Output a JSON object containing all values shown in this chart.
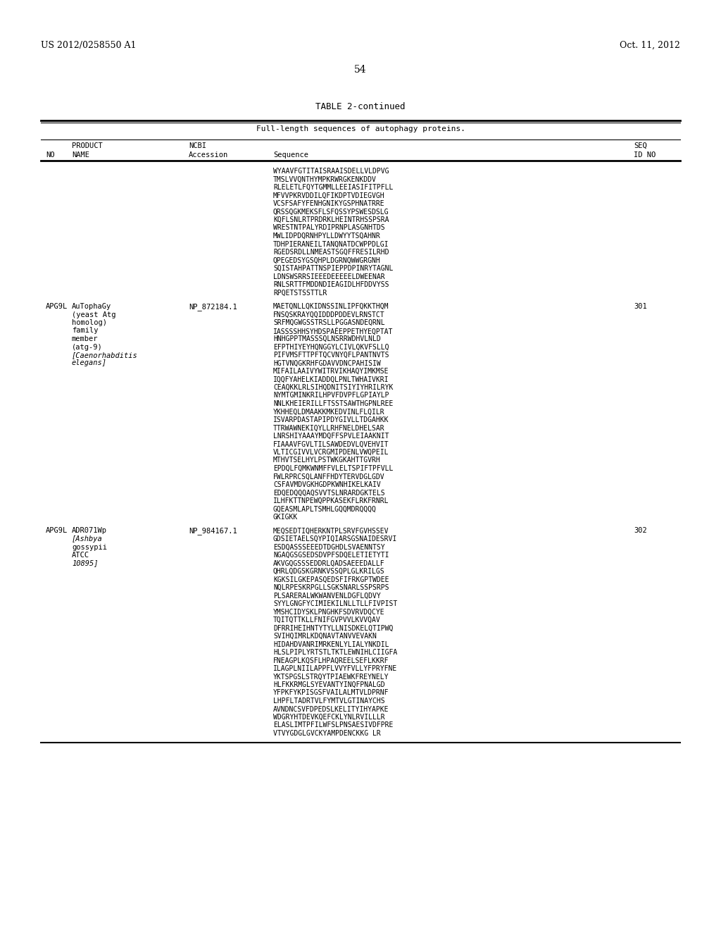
{
  "header_left": "US 2012/0258550 A1",
  "header_right": "Oct. 11, 2012",
  "page_number": "54",
  "table_title": "TABLE 2-continued",
  "table_subtitle": "Full-length sequences of autophagy proteins.",
  "background_color": "#ffffff",
  "text_color": "#000000",
  "row0_sequences": [
    "WYAAVFGTITAISRAAISDELLVLDPVG",
    "TMSLVVQNTHYMPKRWRGKENKDDV",
    "RLELETLFQYTGMMLLEEIASIFITPFLL",
    "MFVVPKRVDDILQFIKDPTVDIEGVGH",
    "VCSFSAFYFENHGNIKYGSPHNATRRE",
    "QRSSQGKMEKSFLSFQSSYPSWESDSLG",
    "KQFLSNLRTPRDRKLHEINTRHSSPSRA",
    "WRESTNTPALYRDIPRNPLASGNHTDS",
    "MWLIDPDQRNHPYLLDWYYTSQAHNR",
    "TDHPIERANEILTANQNATDCWPPDLGI",
    "RGEDSRDLLNMEASTSGQFFRESILRHD",
    "QPEGEDSYGSQHPLDGRNQWWGRGNH",
    "SQISTAHPATTNSPIEPPDPINRYTAGNL",
    "LDNSWSRRSIEEEDEEEEELDWEENAR",
    "RNLSRTTFMDDNDIEAGIDLHFDDVYSS",
    "RPQETSTSSTTLR"
  ],
  "row1_product_no": "APG9L",
  "row1_product_name": "AuTophaGy",
  "row1_product_rest": [
    "(yeast Atg",
    "homolog)",
    "family",
    "member",
    "(atg-9)",
    "[Caenorhabditis",
    "elegans]"
  ],
  "row1_accession": "NP_872184.1",
  "row1_seqid": "301",
  "row1_sequences": [
    "MAETQNLLQKIDNSSINLIPFQKKTHQM",
    "FNSQSKRAYQQIDDDPDDEVLRNSTCT",
    "SRFMQGWGSSTRSLLPGGASNDEQRNL",
    "IASSSSHHSYHDSPAÉEPPETHYEQPTAT",
    "HNHGPPTMASSSQLNSRRWDHVLNLD",
    "EFPTHIYEYHQNGGYLCIVLQKVFSLLQ",
    "PIFVMSFTTPFTQCVNYQFLPANTNVTS",
    "HGTVNQGKRHFGDAVVDNCPAHISIW",
    "MIFAILAAIVYWITRVIKHAQYIMKMSE",
    "IQQFYAHELKIADDQLPNLTWHAIVKRI",
    "CEAQKKLRLSIHQDNITSIYIYHRILRYK",
    "NYMTGMINKRILHPVFDVPFLGPIAYLP",
    "NNLKHEIERILLFTSSTSAWTHGPNLREE",
    "YKHHEQLDMAAKKMKEDVINLFLQILR",
    "ISVARPDASTAPIPDYGIVLLTDGAHKK",
    "TTRWAWNEKIQYLLRHFNELDHELSAR",
    "LNRSHIYAAAYMDQFFSPVLEIAAKNIT",
    "FIAAAVFGVLTILSAWDEDVLQVEHVIT",
    "VLTICGIVVLVCRGMIPDENLVWQPEIL",
    "MTHVTSELHYLPSTWKGKAHTTGVRH",
    "EPDQLFQMKWNMFFVLELTSPIFTPFVLL",
    "FWLRPRCSQLANFFHDYTERVDGLGDV",
    "CSFAVMDVGKHGDPKWNHIKELKAIV",
    "EDQEDQQQAQSVVTSLNRARDGKTELS",
    "ILHFKTTNPEWQPPKASEKFLRKFRNRL",
    "GQEASMLAPLTSMHLGQQMDRQQQQ",
    "GKIGKK"
  ],
  "row2_product_no": "APG9L",
  "row2_product_name": "ADR071Wp",
  "row2_product_rest": [
    "[Ashbya",
    "gossypii",
    "ATCC",
    "10895]"
  ],
  "row2_accession": "NP_984167.1",
  "row2_seqid": "302",
  "row2_sequences": [
    "MEQSEDTIQHERKNTPLSRVFGVHSSEV",
    "GDSIETAELSQYPIQIARSGSNAIDESRVI",
    "ESDQASSSEEEDTDGHDLSVAENNTSY",
    "NGAQGSGSEDSDVPFSDQELETIETYTI",
    "AKVGQGSSSEDDRLQADSAEEEDALLF",
    "QHRLQDGSKGRNKVSSQPLGLKRILGS",
    "KGKSILGKEPASQEDSFIFRKGPTWDEE",
    "NQLRPESKRPGLLSGKSNARLSSPSRPS",
    "PLSARERALWKWANVENLDGFLQDVY",
    "SYYLGNGFYCIMIEKILNLLTLLFIVPIST",
    "YMSHCIDYSKLPNGHKFSDVRVDQCYE",
    "TQITQTTKLLFNIFGVPVVLKVVQAV",
    "DFRRIHEIHNTYTYLLNISDKELQTIPWQ",
    "SVIHQIMRLKDQNAVTANVVEVAKN",
    "HIDAHDVANRIMRKENLYLIALYNKDIL",
    "HLSLPIPLYRTSTLTKTLEWNIHLCIIGFA",
    "FNEAGPLKQSFLHPAQREELSEFLKKRF",
    "ILAGPLNIILAPPFLVVYFVLLYFPRYFNE",
    "YKTSPGSLSTRQYTPIAEWKFREYNELY",
    "HLFKKRMGLSYEVANTYINQFPNALGD",
    "YFPKFYKPISGSFVAILALMTVLDPRNF",
    "LHPFLTADRTVLFYMTVLGTINAYCHS",
    "AVNDNCSVFDPEDSLKELITYIHYAPKE",
    "WDGRYHTDEVKQEFCKLYNLRVILLLR",
    "ELASLIMTPFILWFSLPNSAESIVDFPRE",
    "VTVYGDGLGVCKYAMPDENCKKG LR"
  ]
}
